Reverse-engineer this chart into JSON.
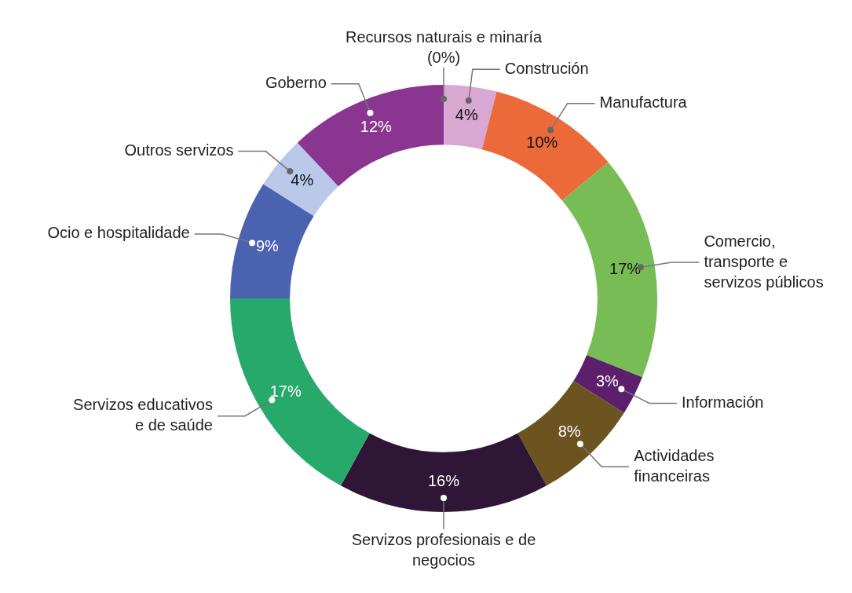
{
  "chart_data": {
    "type": "donut",
    "categories": [
      "Recursos naturais e minaría (0%)",
      "Construción",
      "Manufactura",
      "Comercio, transporte e servizos públicos",
      "Información",
      "Actividades financeiras",
      "Servizos profesionais e de negocios",
      "Servizos educativos e de saúde",
      "Ocio e hospitalidade",
      "Outros servizos",
      "Goberno"
    ],
    "values": [
      0,
      4,
      10,
      17,
      3,
      8,
      16,
      17,
      9,
      4,
      12
    ],
    "colors": [
      "#888888",
      "#d8a8d2",
      "#ec6a3a",
      "#78bc55",
      "#5b1f6b",
      "#6b5420",
      "#2f1536",
      "#26a96b",
      "#4a62b0",
      "#bac8ea",
      "#8a3590"
    ],
    "value_labels": [
      null,
      "4%",
      "10%",
      "17%",
      "3%",
      "8%",
      "16%",
      "17%",
      "9%",
      "4%",
      "12%"
    ]
  }
}
